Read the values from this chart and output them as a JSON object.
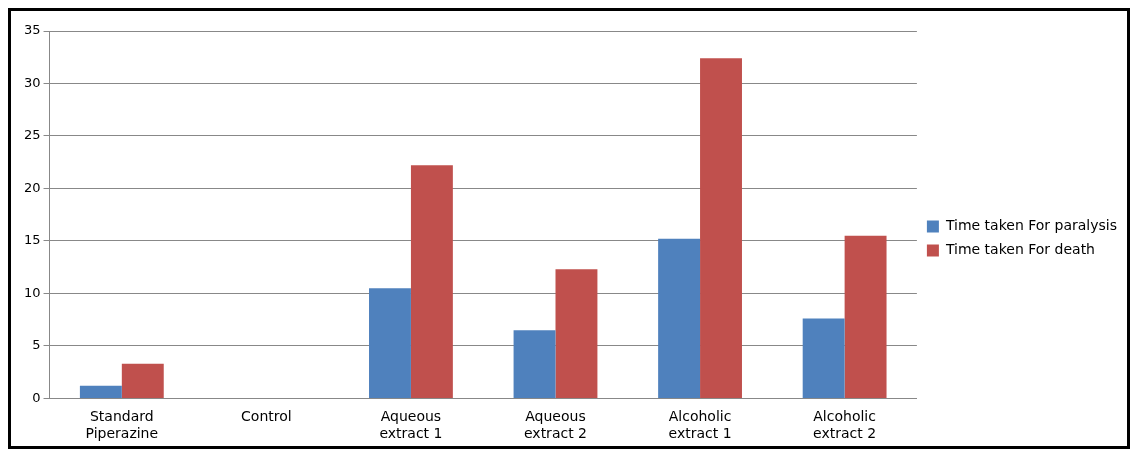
{
  "chart_data": {
    "type": "bar",
    "categories": [
      "Standard Piperazine",
      "Control",
      "Aqueous extract 1",
      "Aqueous extract 2",
      "Alcoholic extract 1",
      "Alcoholic extract 2"
    ],
    "series": [
      {
        "name": "Time taken For paralysis",
        "color": "#4f81bd",
        "values": [
          1.2,
          0,
          10.5,
          6.5,
          15.2,
          7.6
        ]
      },
      {
        "name": "Time taken For death",
        "color": "#c0504d",
        "values": [
          3.3,
          0,
          22.2,
          12.3,
          32.4,
          15.5
        ]
      }
    ],
    "ylim": [
      0,
      35
    ],
    "yticks": [
      0,
      5,
      10,
      15,
      20,
      25,
      30,
      35
    ],
    "grid": "y",
    "legend": "right"
  }
}
